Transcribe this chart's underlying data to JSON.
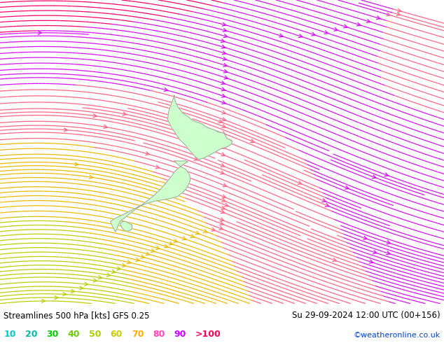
{
  "title_left": "Streamlines 500 hPa [kts] GFS 0.25",
  "title_right": "Su 29-09-2024 12:00 UTC (00+156)",
  "credit": "©weatheronline.co.uk",
  "legend_labels": [
    "10",
    "20",
    "30",
    "40",
    "50",
    "60",
    "70",
    "80",
    "90",
    ">100"
  ],
  "legend_colors_map": [
    "#00cccc",
    "#00bbaa",
    "#00cc00",
    "#66cc00",
    "#aacc00",
    "#cccc00",
    "#ffaa00",
    "#ff44bb",
    "#cc00ff",
    "#ff0055"
  ],
  "bg_color": "#e0e0e0",
  "land_color": "#ccffcc",
  "coast_color": "#999999",
  "map_bg": "#e8e8e8",
  "bottom_bg": "#ffffff",
  "lon_min": 155,
  "lon_max": 200,
  "lat_min": -55,
  "lat_max": -25,
  "trough_lon": 160.0,
  "trough_lat": -45.0,
  "jet_speed": 95.0,
  "speed_bounds": [
    0,
    10,
    20,
    30,
    40,
    50,
    60,
    70,
    80,
    90,
    100,
    160
  ],
  "speed_colors": [
    "#e8e8e8",
    "#00cccc",
    "#00bbaa",
    "#00cc00",
    "#66cc00",
    "#aacc00",
    "#cccc00",
    "#ffaa00",
    "#ff44bb",
    "#cc00ff",
    "#ff0055",
    "#aa0044"
  ]
}
